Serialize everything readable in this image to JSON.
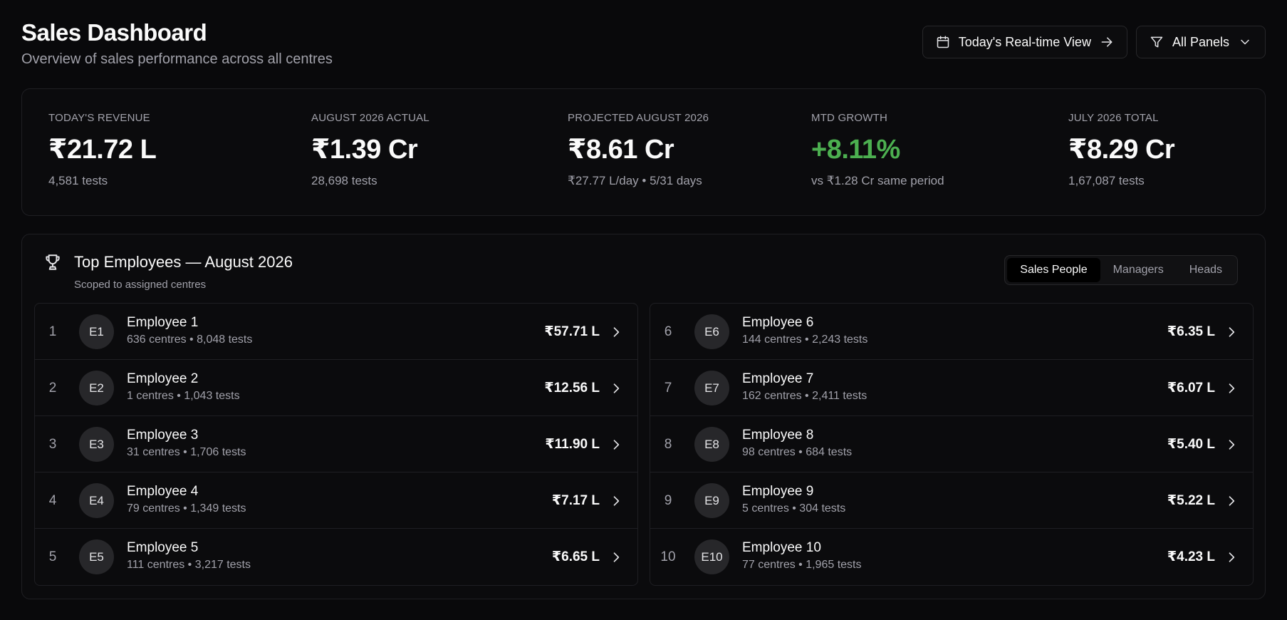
{
  "header": {
    "title": "Sales Dashboard",
    "subtitle": "Overview of sales performance across all centres",
    "realtime_button": "Today's Real-time View",
    "panels_button": "All Panels"
  },
  "stats": [
    {
      "label": "Today's Revenue",
      "value": "₹21.72 L",
      "sub": "4,581 tests"
    },
    {
      "label": "August 2026 Actual",
      "value": "₹1.39 Cr",
      "sub": "28,698 tests"
    },
    {
      "label": "Projected August 2026",
      "value": "₹8.61 Cr",
      "sub": "₹27.77 L/day • 5/31 days"
    },
    {
      "label": "MTD Growth",
      "value": "+8.11%",
      "sub": "vs ₹1.28 Cr same period",
      "value_color": "#4caf50"
    },
    {
      "label": "July 2026 Total",
      "value": "₹8.29 Cr",
      "sub": "1,67,087 tests"
    }
  ],
  "employees_panel": {
    "title": "Top Employees — August 2026",
    "scope": "Scoped to assigned centres",
    "tabs": [
      "Sales People",
      "Managers",
      "Heads"
    ],
    "active_tab": "Sales People",
    "rows": [
      {
        "rank": "1",
        "initials": "E1",
        "name": "Employee 1",
        "meta": "636 centres • 8,048 tests",
        "amount": "₹57.71 L"
      },
      {
        "rank": "2",
        "initials": "E2",
        "name": "Employee 2",
        "meta": "1 centres • 1,043 tests",
        "amount": "₹12.56 L"
      },
      {
        "rank": "3",
        "initials": "E3",
        "name": "Employee 3",
        "meta": "31 centres • 1,706 tests",
        "amount": "₹11.90 L"
      },
      {
        "rank": "4",
        "initials": "E4",
        "name": "Employee 4",
        "meta": "79 centres • 1,349 tests",
        "amount": "₹7.17 L"
      },
      {
        "rank": "5",
        "initials": "E5",
        "name": "Employee 5",
        "meta": "111 centres • 3,217 tests",
        "amount": "₹6.65 L"
      },
      {
        "rank": "6",
        "initials": "E6",
        "name": "Employee 6",
        "meta": "144 centres • 2,243 tests",
        "amount": "₹6.35 L"
      },
      {
        "rank": "7",
        "initials": "E7",
        "name": "Employee 7",
        "meta": "162 centres • 2,411 tests",
        "amount": "₹6.07 L"
      },
      {
        "rank": "8",
        "initials": "E8",
        "name": "Employee 8",
        "meta": "98 centres • 684 tests",
        "amount": "₹5.40 L"
      },
      {
        "rank": "9",
        "initials": "E9",
        "name": "Employee 9",
        "meta": "5 centres • 304 tests",
        "amount": "₹5.22 L"
      },
      {
        "rank": "10",
        "initials": "E10",
        "name": "Employee 10",
        "meta": "77 centres • 1,965 tests",
        "amount": "₹4.23 L"
      }
    ]
  },
  "icons": {
    "realtime_button": "calendar-icon",
    "panels_button": "filter-icon",
    "panels_dropdown": "chevron-down-icon",
    "realtime_arrow": "arrow-right-icon",
    "panel_title": "trophy-icon",
    "row_action": "chevron-right-icon"
  }
}
